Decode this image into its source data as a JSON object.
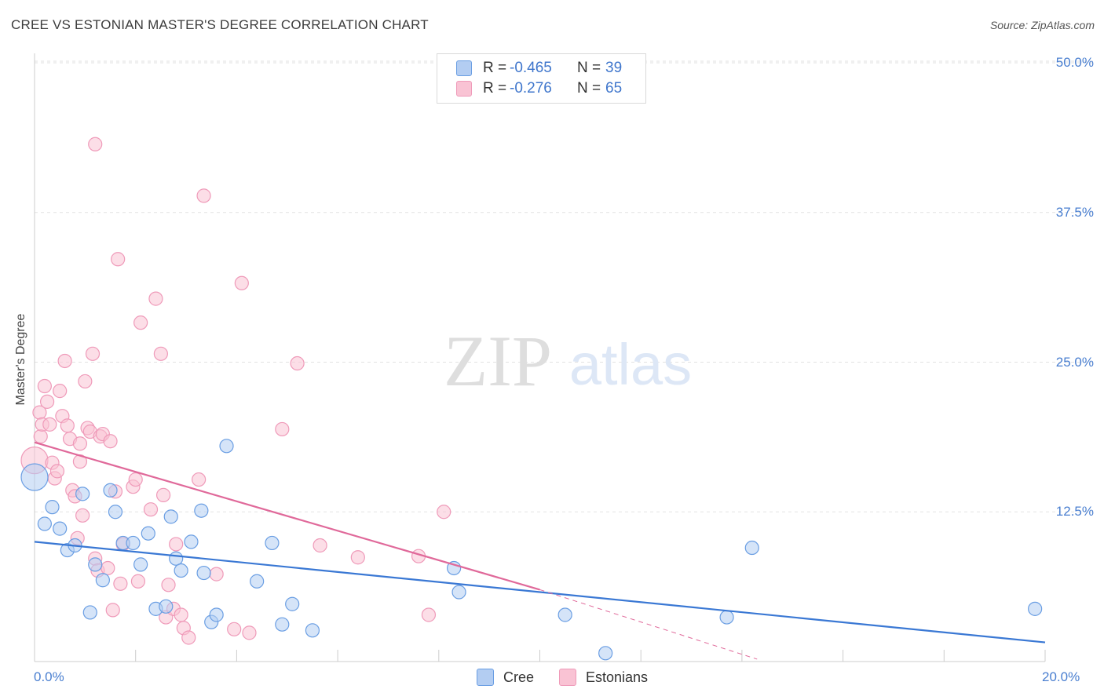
{
  "header": {
    "title": "CREE VS ESTONIAN MASTER'S DEGREE CORRELATION CHART",
    "source": "Source: ZipAtlas.com"
  },
  "watermark": {
    "zip": "ZIP",
    "atlas": "atlas"
  },
  "legend": {
    "rows": [
      {
        "r_label": "R =",
        "r_value": "-0.465",
        "n_label": "N =",
        "n_value": "39",
        "color": "#b3cdf2"
      },
      {
        "r_label": "R =",
        "r_value": "-0.276",
        "n_label": "N =",
        "n_value": "65",
        "color": "#f9c3d4"
      }
    ]
  },
  "bottom_legend": {
    "cree": "Cree",
    "estonians": "Estonians"
  },
  "chart_data": {
    "type": "scatter",
    "title": "CREE VS ESTONIAN MASTER'S DEGREE CORRELATION CHART",
    "xlabel": "",
    "ylabel": "Master's Degree",
    "xlim": [
      0,
      20
    ],
    "ylim": [
      0,
      50
    ],
    "x_tick_labels": [
      "0.0%",
      "20.0%"
    ],
    "y_ticks": [
      12.5,
      25,
      37.5,
      50
    ],
    "y_tick_labels": [
      "12.5%",
      "25.0%",
      "37.5%",
      "50.0%"
    ],
    "grid": true,
    "series": [
      {
        "name": "Cree",
        "color": "#3a78d4",
        "fill": "#b3cdf2",
        "stroke": "#6a9ee3",
        "r": -0.465,
        "n": 39,
        "trend": {
          "x": [
            0,
            20
          ],
          "y": [
            10.0,
            1.6
          ]
        },
        "points": [
          {
            "x": 0.0,
            "y": 15.4,
            "big": true
          },
          {
            "x": 0.2,
            "y": 11.5
          },
          {
            "x": 0.35,
            "y": 12.9
          },
          {
            "x": 0.5,
            "y": 11.1
          },
          {
            "x": 0.65,
            "y": 9.3
          },
          {
            "x": 0.8,
            "y": 9.7
          },
          {
            "x": 0.95,
            "y": 14.0
          },
          {
            "x": 1.1,
            "y": 4.1
          },
          {
            "x": 1.2,
            "y": 8.1
          },
          {
            "x": 1.35,
            "y": 6.8
          },
          {
            "x": 1.5,
            "y": 14.3
          },
          {
            "x": 1.6,
            "y": 12.5
          },
          {
            "x": 1.75,
            "y": 9.9
          },
          {
            "x": 1.95,
            "y": 9.9
          },
          {
            "x": 2.1,
            "y": 8.1
          },
          {
            "x": 2.25,
            "y": 10.7
          },
          {
            "x": 2.4,
            "y": 4.4
          },
          {
            "x": 2.6,
            "y": 4.6
          },
          {
            "x": 2.7,
            "y": 12.1
          },
          {
            "x": 2.8,
            "y": 8.6
          },
          {
            "x": 2.9,
            "y": 7.6
          },
          {
            "x": 3.1,
            "y": 10.0
          },
          {
            "x": 3.3,
            "y": 12.6
          },
          {
            "x": 3.35,
            "y": 7.4
          },
          {
            "x": 3.5,
            "y": 3.3
          },
          {
            "x": 3.6,
            "y": 3.9
          },
          {
            "x": 3.8,
            "y": 18.0
          },
          {
            "x": 4.4,
            "y": 6.7
          },
          {
            "x": 4.7,
            "y": 9.9
          },
          {
            "x": 4.9,
            "y": 3.1
          },
          {
            "x": 5.1,
            "y": 4.8
          },
          {
            "x": 5.5,
            "y": 2.6
          },
          {
            "x": 8.3,
            "y": 7.8
          },
          {
            "x": 8.4,
            "y": 5.8
          },
          {
            "x": 10.5,
            "y": 3.9
          },
          {
            "x": 11.3,
            "y": 0.7
          },
          {
            "x": 13.7,
            "y": 3.7
          },
          {
            "x": 14.2,
            "y": 9.5
          },
          {
            "x": 19.8,
            "y": 4.4
          }
        ]
      },
      {
        "name": "Estonians",
        "color": "#e0699a",
        "fill": "#f9c3d4",
        "stroke": "#ef9ab9",
        "r": -0.276,
        "n": 65,
        "trend": {
          "x": [
            0,
            10.0
          ],
          "y": [
            18.3,
            6.0
          ]
        },
        "trend_dashed": {
          "x": [
            10.0,
            14.3
          ],
          "y": [
            6.0,
            0.2
          ]
        },
        "points": [
          {
            "x": 0.0,
            "y": 16.8,
            "big": true
          },
          {
            "x": 0.1,
            "y": 20.8
          },
          {
            "x": 0.12,
            "y": 18.8
          },
          {
            "x": 0.15,
            "y": 19.8
          },
          {
            "x": 0.2,
            "y": 23.0
          },
          {
            "x": 0.25,
            "y": 21.7
          },
          {
            "x": 0.3,
            "y": 19.8
          },
          {
            "x": 0.35,
            "y": 16.6
          },
          {
            "x": 0.4,
            "y": 15.3
          },
          {
            "x": 0.45,
            "y": 15.9
          },
          {
            "x": 0.5,
            "y": 22.6
          },
          {
            "x": 0.55,
            "y": 20.5
          },
          {
            "x": 0.6,
            "y": 25.1
          },
          {
            "x": 0.65,
            "y": 19.7
          },
          {
            "x": 0.7,
            "y": 18.6
          },
          {
            "x": 0.75,
            "y": 14.3
          },
          {
            "x": 0.8,
            "y": 13.8
          },
          {
            "x": 0.85,
            "y": 10.3
          },
          {
            "x": 0.9,
            "y": 16.7
          },
          {
            "x": 0.9,
            "y": 18.2
          },
          {
            "x": 0.95,
            "y": 12.2
          },
          {
            "x": 1.0,
            "y": 23.4
          },
          {
            "x": 1.05,
            "y": 19.5
          },
          {
            "x": 1.1,
            "y": 19.2
          },
          {
            "x": 1.15,
            "y": 25.7
          },
          {
            "x": 1.2,
            "y": 8.6
          },
          {
            "x": 1.25,
            "y": 7.6
          },
          {
            "x": 1.3,
            "y": 18.8
          },
          {
            "x": 1.35,
            "y": 19.0
          },
          {
            "x": 1.45,
            "y": 7.8
          },
          {
            "x": 1.5,
            "y": 18.4
          },
          {
            "x": 1.55,
            "y": 4.3
          },
          {
            "x": 1.6,
            "y": 14.2
          },
          {
            "x": 1.7,
            "y": 6.5
          },
          {
            "x": 1.75,
            "y": 9.8
          },
          {
            "x": 1.2,
            "y": 43.2
          },
          {
            "x": 1.65,
            "y": 33.6
          },
          {
            "x": 1.95,
            "y": 14.6
          },
          {
            "x": 2.0,
            "y": 15.2
          },
          {
            "x": 2.05,
            "y": 6.7
          },
          {
            "x": 2.1,
            "y": 28.3
          },
          {
            "x": 2.3,
            "y": 12.7
          },
          {
            "x": 2.4,
            "y": 30.3
          },
          {
            "x": 2.5,
            "y": 25.7
          },
          {
            "x": 2.55,
            "y": 13.9
          },
          {
            "x": 2.6,
            "y": 3.7
          },
          {
            "x": 2.65,
            "y": 6.4
          },
          {
            "x": 2.75,
            "y": 4.4
          },
          {
            "x": 2.8,
            "y": 9.8
          },
          {
            "x": 2.9,
            "y": 3.9
          },
          {
            "x": 2.95,
            "y": 2.8
          },
          {
            "x": 3.05,
            "y": 2.0
          },
          {
            "x": 3.25,
            "y": 15.2
          },
          {
            "x": 3.35,
            "y": 38.9
          },
          {
            "x": 3.6,
            "y": 7.3
          },
          {
            "x": 3.95,
            "y": 2.7
          },
          {
            "x": 4.1,
            "y": 31.6
          },
          {
            "x": 4.25,
            "y": 2.4
          },
          {
            "x": 4.9,
            "y": 19.4
          },
          {
            "x": 5.2,
            "y": 24.9
          },
          {
            "x": 5.65,
            "y": 9.7
          },
          {
            "x": 6.4,
            "y": 8.7
          },
          {
            "x": 7.6,
            "y": 8.8
          },
          {
            "x": 7.8,
            "y": 3.9
          },
          {
            "x": 8.1,
            "y": 12.5
          }
        ]
      }
    ]
  }
}
